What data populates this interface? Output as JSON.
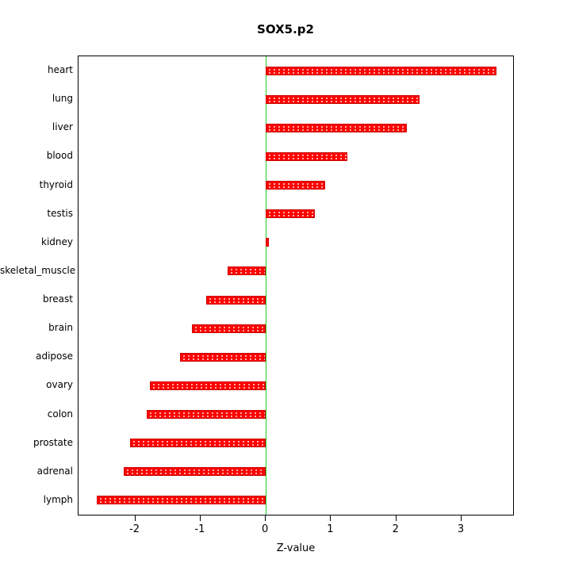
{
  "title": "SOX5.p2",
  "colors": {
    "bar_fill": "#ff0000",
    "bar_border": "#cc0000",
    "zero_line": "#22cc22",
    "axis": "#000000"
  },
  "chart_data": {
    "type": "bar",
    "orientation": "horizontal",
    "title": "SOX5.p2",
    "xlabel": "Z-value",
    "ylabel": "",
    "legend": "none",
    "grid": false,
    "categories": [
      "heart",
      "lung",
      "liver",
      "blood",
      "thyroid",
      "testis",
      "kidney",
      "skeletal_muscle",
      "breast",
      "brain",
      "adipose",
      "ovary",
      "colon",
      "prostate",
      "adrenal",
      "lymph"
    ],
    "values": [
      3.54,
      2.36,
      2.16,
      1.25,
      0.91,
      0.75,
      0.05,
      -0.58,
      -0.91,
      -1.13,
      -1.31,
      -1.78,
      -1.82,
      -2.08,
      -2.18,
      -2.59
    ],
    "xlim": [
      -2.87,
      3.79
    ],
    "xticks": [
      -2,
      -1,
      0,
      1,
      2,
      3
    ],
    "zero_reference_line": 0
  }
}
